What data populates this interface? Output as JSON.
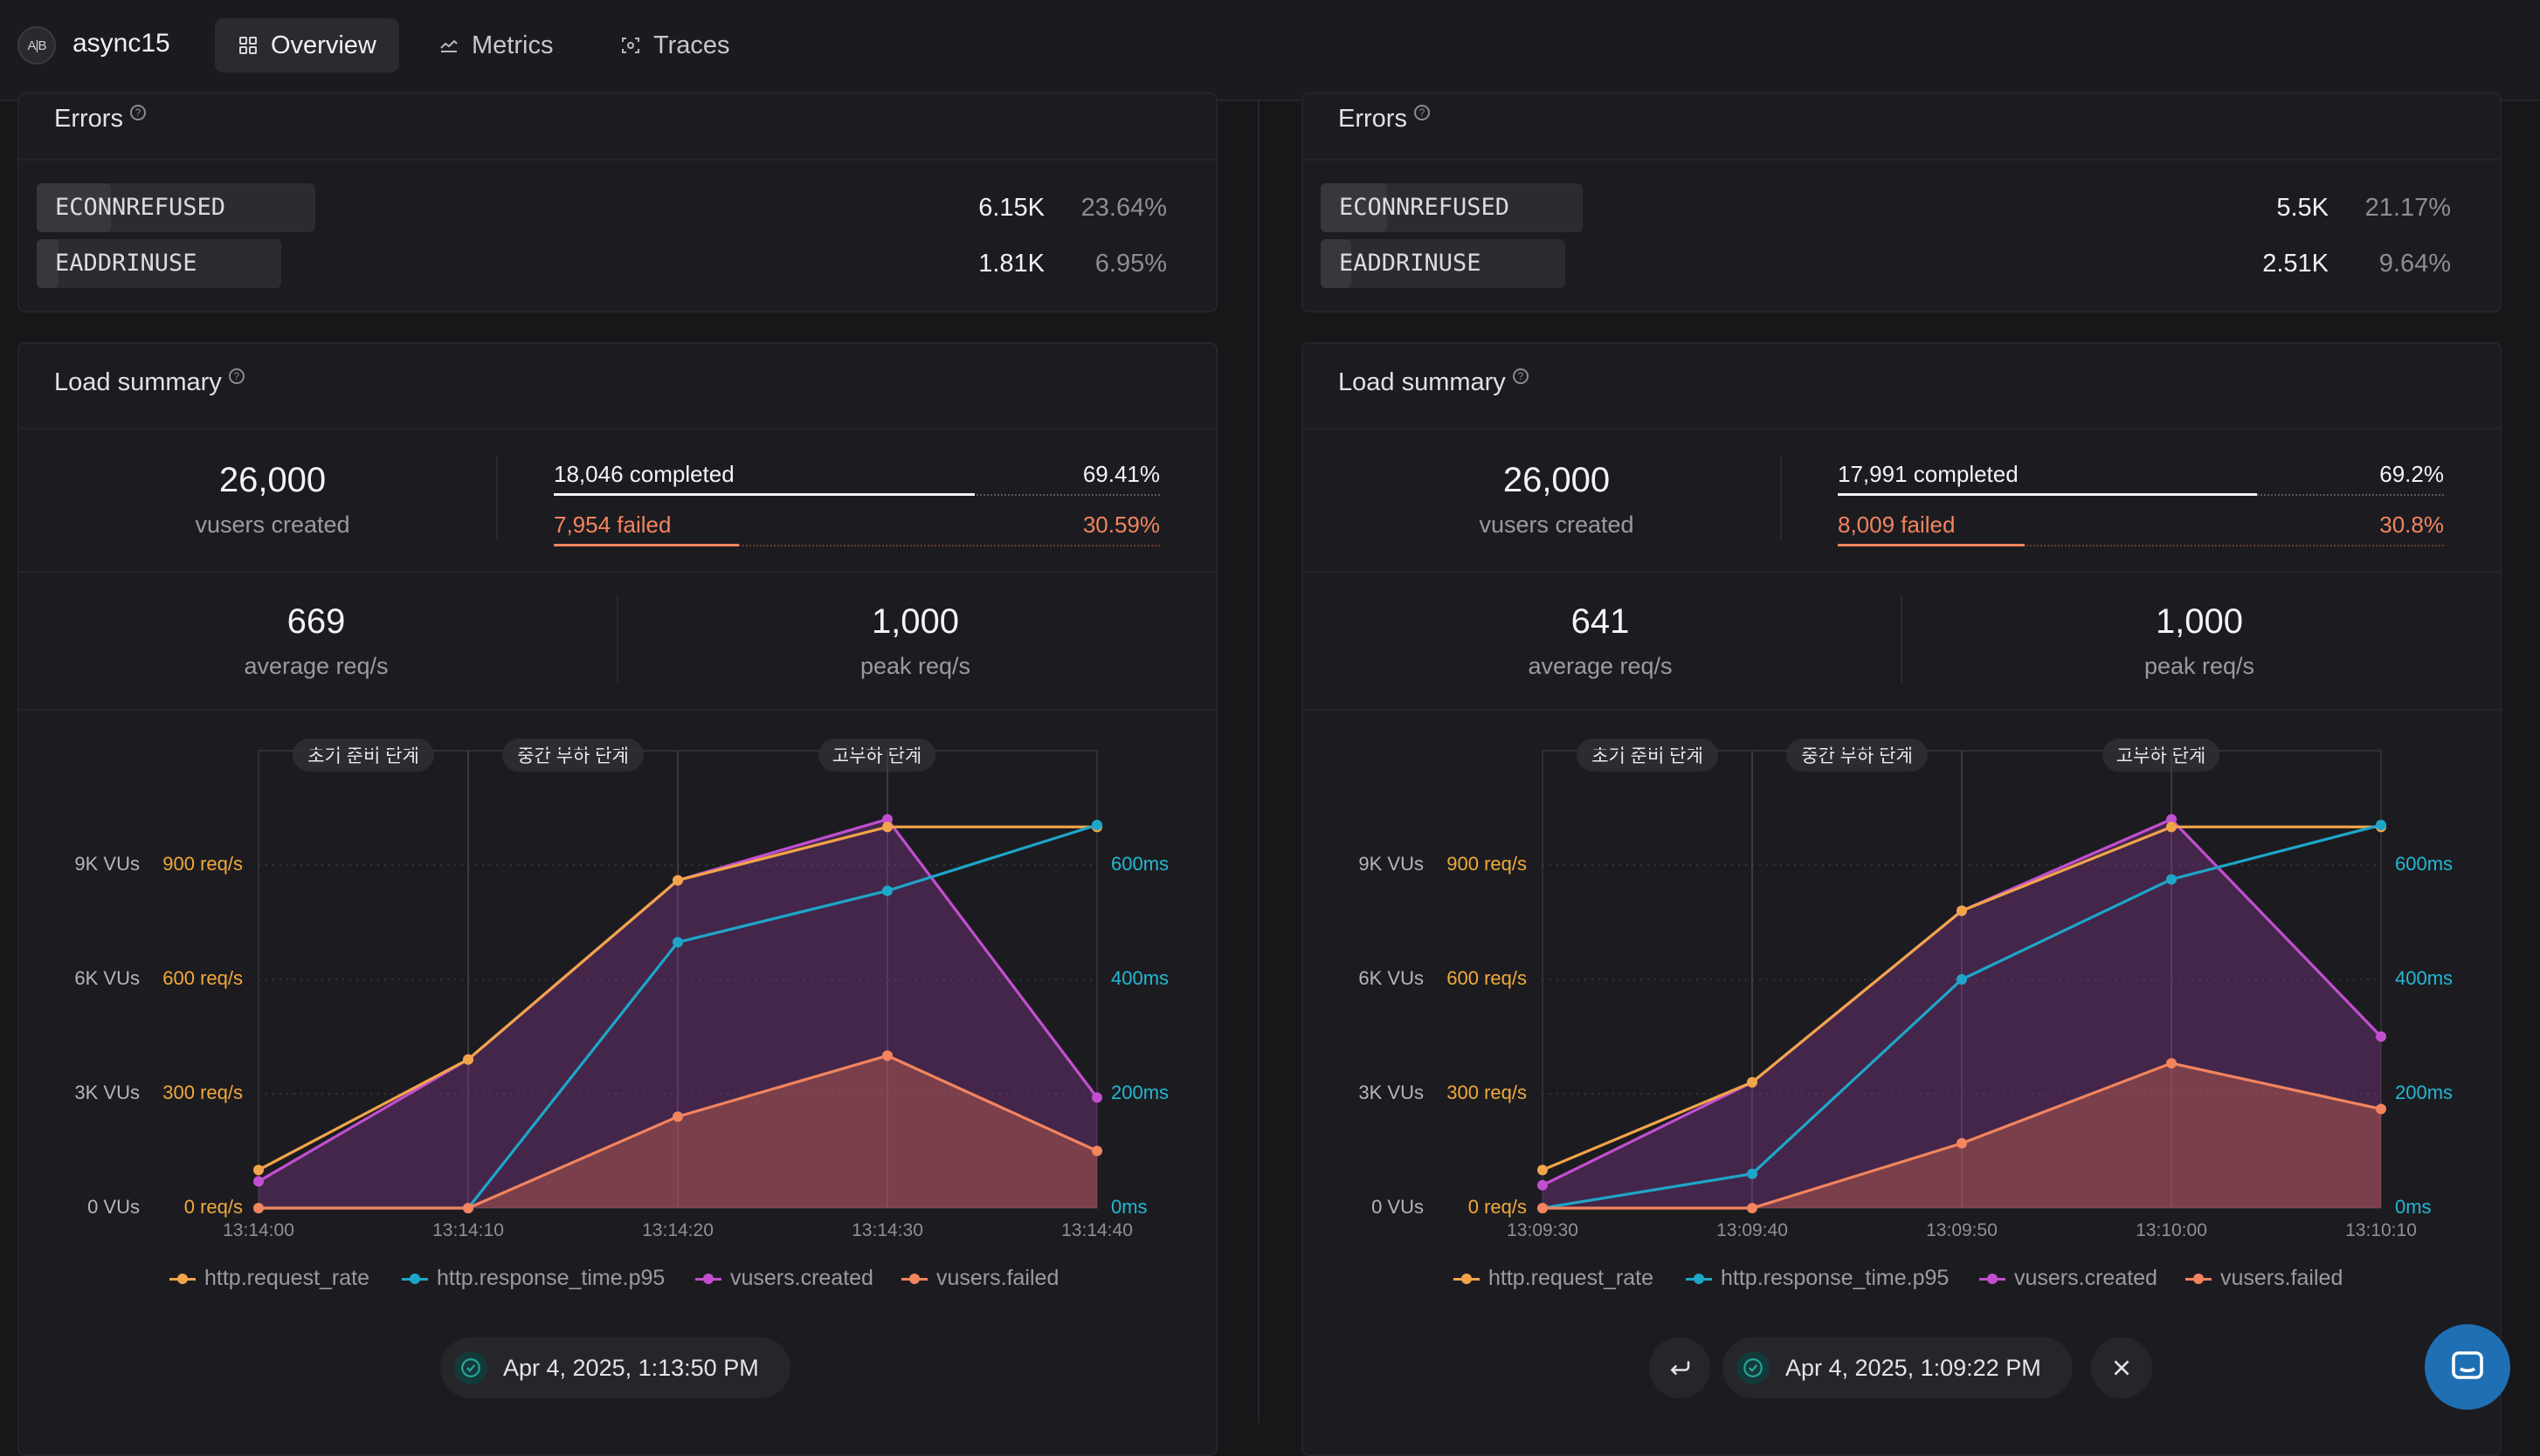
{
  "app": {
    "logo_text": "A|B",
    "name": "async15"
  },
  "nav": {
    "tabs": [
      {
        "label": "Overview",
        "icon": "grid-icon",
        "active": true
      },
      {
        "label": "Metrics",
        "icon": "area-chart-icon",
        "active": false
      },
      {
        "label": "Traces",
        "icon": "traces-icon",
        "active": false
      }
    ]
  },
  "colors": {
    "request_rate": "#f2a44a",
    "response_time": "#1ea6c9",
    "vusers_created": "#c24fd0",
    "vusers_failed": "#f2845e",
    "completed": "#f4f4f6",
    "failed": "#f2845e"
  },
  "reports": [
    {
      "errors_title": "Errors",
      "errors": [
        {
          "code": "ECONNREFUSED",
          "count": "6.15K",
          "pct": "23.64%",
          "share": 0.2364
        },
        {
          "code": "EADDRINUSE",
          "count": "1.81K",
          "pct": "6.95%",
          "share": 0.0695
        }
      ],
      "load_title": "Load summary",
      "vusers_created_value": "26,000",
      "vusers_created_label": "vusers created",
      "completed_label": "18,046 completed",
      "completed_pct": "69.41%",
      "completed_share": 0.6941,
      "failed_label": "7,954 failed",
      "failed_pct": "30.59%",
      "failed_share": 0.3059,
      "avg_value": "669",
      "avg_label": "average req/s",
      "peak_value": "1,000",
      "peak_label": "peak req/s",
      "timestamp": "Apr 4, 2025, 1:13:50 PM",
      "chart_data": {
        "type": "line",
        "x": [
          "13:14:00",
          "13:14:10",
          "13:14:20",
          "13:14:30",
          "13:14:40"
        ],
        "phases": [
          "초기 준비 단계",
          "중간 부하 단계",
          "고부하 단계"
        ],
        "phase_x": [
          0.5,
          1.5,
          3.0
        ],
        "y_left_vus": [
          "0 VUs",
          "3K VUs",
          "6K VUs",
          "9K VUs"
        ],
        "y_left_req": [
          "0 req/s",
          "300 req/s",
          "600 req/s",
          "900 req/s"
        ],
        "y_right": [
          "0ms",
          "200ms",
          "400ms",
          "600ms"
        ],
        "ylim_req": [
          0,
          1200
        ],
        "series": [
          {
            "name": "vusers.created",
            "axis": "vus",
            "values": [
              700,
              3900,
              8600,
              10200,
              2900
            ],
            "color": "#c24fd0",
            "fill": true
          },
          {
            "name": "http.request_rate",
            "axis": "req",
            "values": [
              100,
              390,
              860,
              1000,
              1000
            ],
            "color": "#f2a44a",
            "fill": false
          },
          {
            "name": "http.response_time.p95",
            "axis": "ms",
            "values": [
              0,
              0,
              465,
              555,
              670
            ],
            "color": "#1ea6c9",
            "fill": false
          },
          {
            "name": "vusers.failed",
            "axis": "vus",
            "values": [
              0,
              0,
              2400,
              4000,
              1500
            ],
            "color": "#f2845e",
            "fill": true
          }
        ],
        "legend": [
          "http.request_rate",
          "http.response_time.p95",
          "vusers.created",
          "vusers.failed"
        ]
      }
    },
    {
      "errors_title": "Errors",
      "errors": [
        {
          "code": "ECONNREFUSED",
          "count": "5.5K",
          "pct": "21.17%",
          "share": 0.2117
        },
        {
          "code": "EADDRINUSE",
          "count": "2.51K",
          "pct": "9.64%",
          "share": 0.0964
        }
      ],
      "load_title": "Load summary",
      "vusers_created_value": "26,000",
      "vusers_created_label": "vusers created",
      "completed_label": "17,991 completed",
      "completed_pct": "69.2%",
      "completed_share": 0.692,
      "failed_label": "8,009 failed",
      "failed_pct": "30.8%",
      "failed_share": 0.308,
      "avg_value": "641",
      "avg_label": "average req/s",
      "peak_value": "1,000",
      "peak_label": "peak req/s",
      "timestamp": "Apr 4, 2025, 1:09:22 PM",
      "chart_data": {
        "type": "line",
        "x": [
          "13:09:30",
          "13:09:40",
          "13:09:50",
          "13:10:00",
          "13:10:10"
        ],
        "phases": [
          "초기 준비 단계",
          "중간 부하 단계",
          "고부하 단계"
        ],
        "phase_x": [
          0.5,
          1.5,
          3.0
        ],
        "y_left_vus": [
          "0 VUs",
          "3K VUs",
          "6K VUs",
          "9K VUs"
        ],
        "y_left_req": [
          "0 req/s",
          "300 req/s",
          "600 req/s",
          "900 req/s"
        ],
        "y_right": [
          "0ms",
          "200ms",
          "400ms",
          "600ms"
        ],
        "ylim_req": [
          0,
          1200
        ],
        "series": [
          {
            "name": "vusers.created",
            "axis": "vus",
            "values": [
              600,
              3300,
              7800,
              10200,
              4500
            ],
            "color": "#c24fd0",
            "fill": true
          },
          {
            "name": "http.request_rate",
            "axis": "req",
            "values": [
              100,
              330,
              780,
              1000,
              1000
            ],
            "color": "#f2a44a",
            "fill": false
          },
          {
            "name": "http.response_time.p95",
            "axis": "ms",
            "values": [
              0,
              60,
              400,
              575,
              670
            ],
            "color": "#1ea6c9",
            "fill": false
          },
          {
            "name": "vusers.failed",
            "axis": "vus",
            "values": [
              0,
              0,
              1700,
              3800,
              2600
            ],
            "color": "#f2845e",
            "fill": true
          }
        ],
        "legend": [
          "http.request_rate",
          "http.response_time.p95",
          "vusers.created",
          "vusers.failed"
        ]
      }
    }
  ]
}
